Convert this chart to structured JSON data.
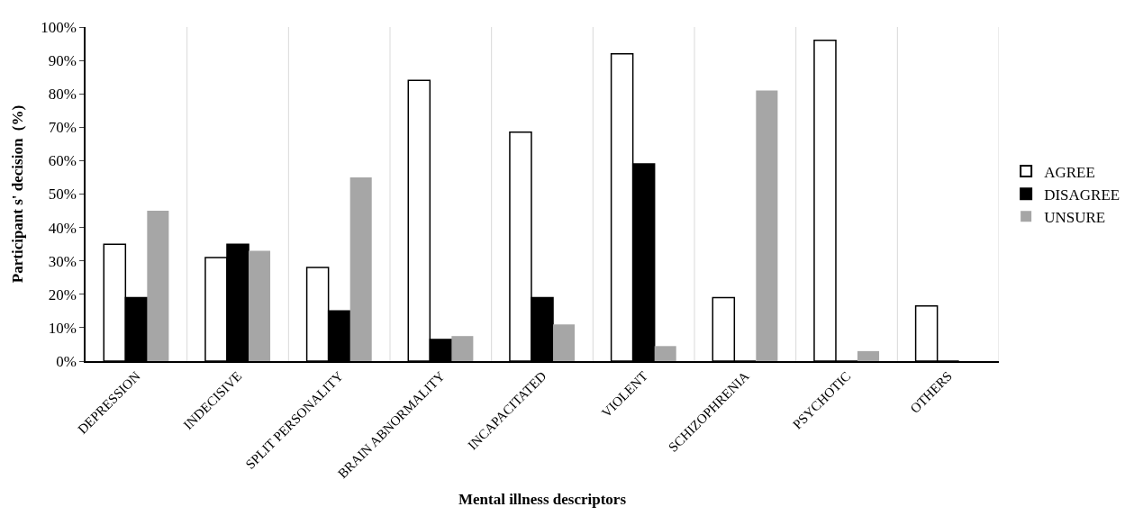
{
  "chart_data": {
    "type": "bar",
    "xlabel": "Mental illness descriptors",
    "ylabel": "Participant s' decision  (%)",
    "categories": [
      "DEPRESSION",
      "INDECISIVE",
      "SPLIT PERSONALITY",
      "BRAIN ABNORMALITY",
      "INCAPACITATED",
      "VIOLENT",
      "SCHIZOPHRENIA",
      "PSYCHOTIC",
      "OTHERS"
    ],
    "series": [
      {
        "name": "AGREE",
        "color": "#ffffff",
        "values": [
          35,
          31,
          28,
          84,
          68.5,
          92,
          19,
          96,
          16.5
        ]
      },
      {
        "name": "DISAGREE",
        "color": "#000000",
        "values": [
          19,
          35,
          15,
          6.5,
          19,
          59,
          0,
          0,
          0
        ]
      },
      {
        "name": "UNSURE",
        "color": "#a6a6a6",
        "values": [
          45,
          33,
          55,
          7.5,
          11,
          4.5,
          81,
          3,
          0
        ]
      }
    ],
    "ylim": [
      0,
      100
    ],
    "yticks": [
      {
        "value": 0,
        "label": "0%"
      },
      {
        "value": 10,
        "label": "10%"
      },
      {
        "value": 20,
        "label": "20%"
      },
      {
        "value": 30,
        "label": "30%"
      },
      {
        "value": 40,
        "label": "40%"
      },
      {
        "value": 50,
        "label": "50%"
      },
      {
        "value": 60,
        "label": "60%"
      },
      {
        "value": 70,
        "label": "70%"
      },
      {
        "value": 80,
        "label": "80%"
      },
      {
        "value": 90,
        "label": "90%"
      },
      {
        "value": 100,
        "label": "100%"
      }
    ],
    "grid": "x",
    "legend": "right"
  }
}
